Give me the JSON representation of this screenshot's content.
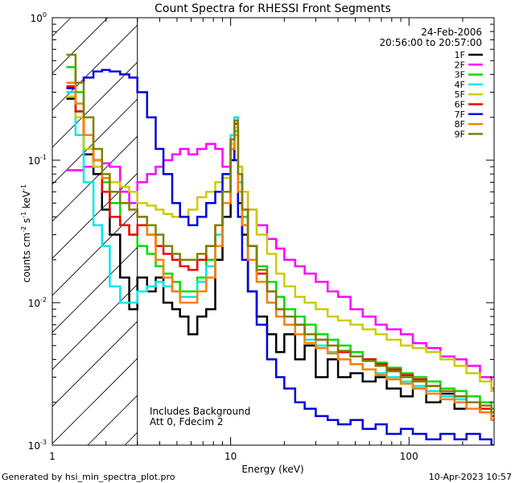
{
  "chart_data": {
    "type": "line",
    "title": "Count Spectra for RHESSI Front Segments",
    "xlabel": "Energy (keV)",
    "ylabel": "counts cm",
    "ylabel_units": {
      "sup1": "-2",
      "mid": " s",
      "sup2": "-1",
      "tail": " keV",
      "sup3": "-1"
    },
    "x_scale": "log",
    "y_scale": "log",
    "xlim": [
      1,
      300
    ],
    "ylim": [
      0.001,
      1
    ],
    "x_ticks": [
      {
        "value": 1,
        "label": "1"
      },
      {
        "value": 10,
        "label": "10"
      },
      {
        "value": 100,
        "label": "100"
      }
    ],
    "y_ticks": [
      {
        "value": 1,
        "base": "10",
        "exp": "0"
      },
      {
        "value": 0.1,
        "base": "10",
        "exp": "-1"
      },
      {
        "value": 0.01,
        "base": "10",
        "exp": "-2"
      },
      {
        "value": 0.001,
        "base": "10",
        "exp": "-3"
      }
    ],
    "date": "24-Feb-2006",
    "time_range": "20:56:00 to 20:57:00",
    "annotation_lines": [
      "Includes Background",
      "Att 0, Fdecim 2"
    ],
    "shaded_region_x": [
      1,
      3
    ],
    "legend_position": "top-right",
    "series": [
      {
        "name": "1F",
        "color": "#000000",
        "x": [
          1.2,
          1.35,
          1.5,
          1.7,
          1.9,
          2.1,
          2.4,
          2.7,
          3.0,
          3.4,
          3.8,
          4.2,
          4.7,
          5.2,
          5.8,
          6.5,
          7.3,
          8.2,
          9.0,
          10.0,
          10.5,
          11.0,
          11.6,
          12.5,
          14,
          16,
          18,
          20,
          23,
          26,
          30,
          35,
          40,
          47,
          55,
          65,
          75,
          90,
          105,
          125,
          150,
          180,
          210,
          250,
          290
        ],
        "values": [
          0.27,
          0.22,
          0.11,
          0.08,
          0.045,
          0.03,
          0.015,
          0.009,
          0.015,
          0.012,
          0.015,
          0.01,
          0.009,
          0.008,
          0.006,
          0.008,
          0.009,
          0.02,
          0.04,
          0.1,
          0.15,
          0.05,
          0.03,
          0.012,
          0.008,
          0.006,
          0.0045,
          0.006,
          0.004,
          0.005,
          0.003,
          0.004,
          0.003,
          0.0032,
          0.0028,
          0.003,
          0.0025,
          0.0022,
          0.0025,
          0.002,
          0.0023,
          0.0018,
          0.002,
          0.0017,
          0.0015
        ]
      },
      {
        "name": "2F",
        "color": "#ff00ff",
        "x": [
          1.2,
          1.35,
          1.5,
          1.7,
          1.9,
          2.1,
          2.4,
          2.7,
          3.0,
          3.4,
          3.8,
          4.2,
          4.7,
          5.2,
          5.8,
          6.5,
          7.3,
          8.2,
          9.0,
          10.0,
          10.5,
          11.0,
          11.6,
          12.5,
          14,
          16,
          18,
          20,
          23,
          26,
          30,
          35,
          40,
          47,
          55,
          65,
          75,
          90,
          105,
          125,
          150,
          180,
          210,
          250,
          290
        ],
        "values": [
          0.085,
          0.085,
          0.09,
          0.09,
          0.095,
          0.09,
          0.06,
          0.05,
          0.07,
          0.08,
          0.09,
          0.1,
          0.11,
          0.12,
          0.11,
          0.12,
          0.13,
          0.12,
          0.09,
          0.12,
          0.17,
          0.09,
          0.06,
          0.045,
          0.035,
          0.028,
          0.024,
          0.02,
          0.018,
          0.016,
          0.014,
          0.012,
          0.011,
          0.009,
          0.008,
          0.007,
          0.0065,
          0.006,
          0.0052,
          0.0048,
          0.0042,
          0.004,
          0.0036,
          0.003,
          0.0025
        ]
      },
      {
        "name": "3F",
        "color": "#00dd00",
        "x": [
          1.2,
          1.35,
          1.5,
          1.7,
          1.9,
          2.1,
          2.4,
          2.7,
          3.0,
          3.4,
          3.8,
          4.2,
          4.7,
          5.2,
          5.8,
          6.5,
          7.3,
          8.2,
          9.0,
          10.0,
          10.5,
          11.0,
          11.6,
          12.5,
          14,
          16,
          18,
          20,
          23,
          26,
          30,
          35,
          40,
          47,
          55,
          65,
          75,
          90,
          105,
          125,
          150,
          180,
          210,
          250,
          290
        ],
        "values": [
          0.45,
          0.3,
          0.15,
          0.1,
          0.07,
          0.05,
          0.035,
          0.03,
          0.025,
          0.022,
          0.018,
          0.016,
          0.014,
          0.012,
          0.012,
          0.015,
          0.02,
          0.03,
          0.05,
          0.12,
          0.16,
          0.07,
          0.04,
          0.025,
          0.018,
          0.014,
          0.011,
          0.009,
          0.008,
          0.007,
          0.006,
          0.0055,
          0.005,
          0.0045,
          0.004,
          0.0038,
          0.0035,
          0.0032,
          0.003,
          0.0028,
          0.0025,
          0.0024,
          0.0022,
          0.002,
          0.0018
        ]
      },
      {
        "name": "4F",
        "color": "#00e8e8",
        "x": [
          1.2,
          1.35,
          1.5,
          1.7,
          1.9,
          2.1,
          2.4,
          2.7,
          3.0,
          3.4,
          3.8,
          4.2,
          4.7,
          5.2,
          5.8,
          6.5,
          7.3,
          8.2,
          9.0,
          10.0,
          10.5,
          11.0,
          11.6,
          12.5,
          14,
          16,
          18,
          20,
          23,
          26,
          30,
          35,
          40,
          47,
          55,
          65,
          75,
          90,
          105,
          125,
          150,
          180,
          210,
          250,
          290
        ],
        "values": [
          0.3,
          0.15,
          0.07,
          0.035,
          0.025,
          0.013,
          0.01,
          0.01,
          0.012,
          0.013,
          0.014,
          0.013,
          0.012,
          0.011,
          0.011,
          0.014,
          0.018,
          0.03,
          0.06,
          0.15,
          0.2,
          0.07,
          0.035,
          0.02,
          0.014,
          0.01,
          0.008,
          0.007,
          0.006,
          0.0055,
          0.005,
          0.0045,
          0.004,
          0.0037,
          0.0034,
          0.0032,
          0.003,
          0.0028,
          0.0026,
          0.0024,
          0.0022,
          0.0021,
          0.002,
          0.0018,
          0.0016
        ]
      },
      {
        "name": "5F",
        "color": "#cccc00",
        "x": [
          1.2,
          1.35,
          1.5,
          1.7,
          1.9,
          2.1,
          2.4,
          2.7,
          3.0,
          3.4,
          3.8,
          4.2,
          4.7,
          5.2,
          5.8,
          6.5,
          7.3,
          8.2,
          9.0,
          10.0,
          10.5,
          11.0,
          11.6,
          12.5,
          14,
          16,
          18,
          20,
          23,
          26,
          30,
          35,
          40,
          47,
          55,
          65,
          75,
          90,
          105,
          125,
          150,
          180,
          210,
          250,
          290
        ],
        "values": [
          0.28,
          0.2,
          0.12,
          0.09,
          0.075,
          0.07,
          0.065,
          0.06,
          0.05,
          0.048,
          0.045,
          0.042,
          0.04,
          0.04,
          0.045,
          0.055,
          0.06,
          0.07,
          0.075,
          0.13,
          0.17,
          0.09,
          0.06,
          0.045,
          0.03,
          0.022,
          0.016,
          0.013,
          0.011,
          0.01,
          0.009,
          0.008,
          0.0075,
          0.007,
          0.0065,
          0.006,
          0.0055,
          0.005,
          0.0048,
          0.0045,
          0.004,
          0.0036,
          0.0032,
          0.0028,
          0.0024
        ]
      },
      {
        "name": "6F",
        "color": "#ee0000",
        "x": [
          1.2,
          1.35,
          1.5,
          1.7,
          1.9,
          2.1,
          2.4,
          2.7,
          3.0,
          3.4,
          3.8,
          4.2,
          4.7,
          5.2,
          5.8,
          6.5,
          7.3,
          8.2,
          9.0,
          10.0,
          10.5,
          11.0,
          11.6,
          12.5,
          14,
          16,
          18,
          20,
          23,
          26,
          30,
          35,
          40,
          47,
          55,
          65,
          75,
          90,
          105,
          125,
          150,
          180,
          210,
          250,
          290
        ],
        "values": [
          0.33,
          0.22,
          0.15,
          0.1,
          0.06,
          0.04,
          0.035,
          0.03,
          0.035,
          0.03,
          0.025,
          0.022,
          0.02,
          0.018,
          0.017,
          0.02,
          0.025,
          0.035,
          0.06,
          0.14,
          0.18,
          0.08,
          0.045,
          0.025,
          0.016,
          0.012,
          0.009,
          0.008,
          0.007,
          0.006,
          0.0055,
          0.005,
          0.0045,
          0.0042,
          0.004,
          0.0037,
          0.0034,
          0.0031,
          0.0029,
          0.0026,
          0.0024,
          0.0022,
          0.002,
          0.0018,
          0.0016
        ]
      },
      {
        "name": "7F",
        "color": "#0000dd",
        "x": [
          1.2,
          1.35,
          1.5,
          1.7,
          1.9,
          2.1,
          2.4,
          2.7,
          3.0,
          3.4,
          3.8,
          4.2,
          4.7,
          5.2,
          5.8,
          6.5,
          7.3,
          8.2,
          9.0,
          10.0,
          10.5,
          11.0,
          11.6,
          12.5,
          14,
          16,
          18,
          20,
          23,
          26,
          30,
          35,
          40,
          47,
          55,
          65,
          75,
          90,
          105,
          125,
          150,
          180,
          210,
          250,
          290
        ],
        "values": [
          0.32,
          0.35,
          0.38,
          0.42,
          0.43,
          0.42,
          0.4,
          0.38,
          0.3,
          0.2,
          0.12,
          0.08,
          0.05,
          0.04,
          0.035,
          0.04,
          0.05,
          0.06,
          0.08,
          0.12,
          0.1,
          0.04,
          0.02,
          0.012,
          0.007,
          0.004,
          0.003,
          0.0025,
          0.002,
          0.0018,
          0.0016,
          0.0015,
          0.0014,
          0.0015,
          0.0013,
          0.0014,
          0.0012,
          0.0013,
          0.0012,
          0.0011,
          0.0012,
          0.0011,
          0.0012,
          0.0011,
          0.001
        ]
      },
      {
        "name": "8F",
        "color": "#ff8000",
        "x": [
          1.2,
          1.35,
          1.5,
          1.7,
          1.9,
          2.1,
          2.4,
          2.7,
          3.0,
          3.4,
          3.8,
          4.2,
          4.7,
          5.2,
          5.8,
          6.5,
          7.3,
          8.2,
          9.0,
          10.0,
          10.5,
          11.0,
          11.6,
          12.5,
          14,
          16,
          18,
          20,
          23,
          26,
          30,
          35,
          40,
          47,
          55,
          65,
          75,
          90,
          105,
          125,
          150,
          180,
          210,
          250,
          290
        ],
        "values": [
          0.35,
          0.25,
          0.15,
          0.1,
          0.075,
          0.06,
          0.05,
          0.045,
          0.04,
          0.03,
          0.02,
          0.015,
          0.012,
          0.01,
          0.01,
          0.012,
          0.015,
          0.025,
          0.05,
          0.12,
          0.15,
          0.06,
          0.035,
          0.02,
          0.014,
          0.01,
          0.008,
          0.007,
          0.006,
          0.0052,
          0.0048,
          0.0044,
          0.004,
          0.0037,
          0.0034,
          0.0031,
          0.0029,
          0.0027,
          0.0025,
          0.0023,
          0.0021,
          0.002,
          0.0018,
          0.0017,
          0.0015
        ]
      },
      {
        "name": "9F",
        "color": "#808000",
        "x": [
          1.2,
          1.35,
          1.5,
          1.7,
          1.9,
          2.1,
          2.4,
          2.7,
          3.0,
          3.4,
          3.8,
          4.2,
          4.7,
          5.2,
          5.8,
          6.5,
          7.3,
          8.2,
          9.0,
          10.0,
          10.5,
          11.0,
          11.6,
          12.5,
          14,
          16,
          18,
          20,
          23,
          26,
          30,
          35,
          40,
          47,
          55,
          65,
          75,
          90,
          105,
          125,
          150,
          180,
          210,
          250,
          290
        ],
        "values": [
          0.55,
          0.35,
          0.2,
          0.12,
          0.08,
          0.06,
          0.05,
          0.045,
          0.04,
          0.035,
          0.03,
          0.025,
          0.022,
          0.02,
          0.02,
          0.022,
          0.025,
          0.035,
          0.06,
          0.14,
          0.19,
          0.08,
          0.045,
          0.025,
          0.017,
          0.012,
          0.009,
          0.008,
          0.007,
          0.006,
          0.0055,
          0.005,
          0.0046,
          0.0042,
          0.0039,
          0.0036,
          0.0033,
          0.003,
          0.0028,
          0.0026,
          0.0024,
          0.0022,
          0.002,
          0.0019,
          0.0017
        ]
      }
    ]
  },
  "footer": {
    "generated_by": "Generated by hsi_min_spectra_plot.pro",
    "timestamp": "10-Apr-2023 10:57"
  }
}
